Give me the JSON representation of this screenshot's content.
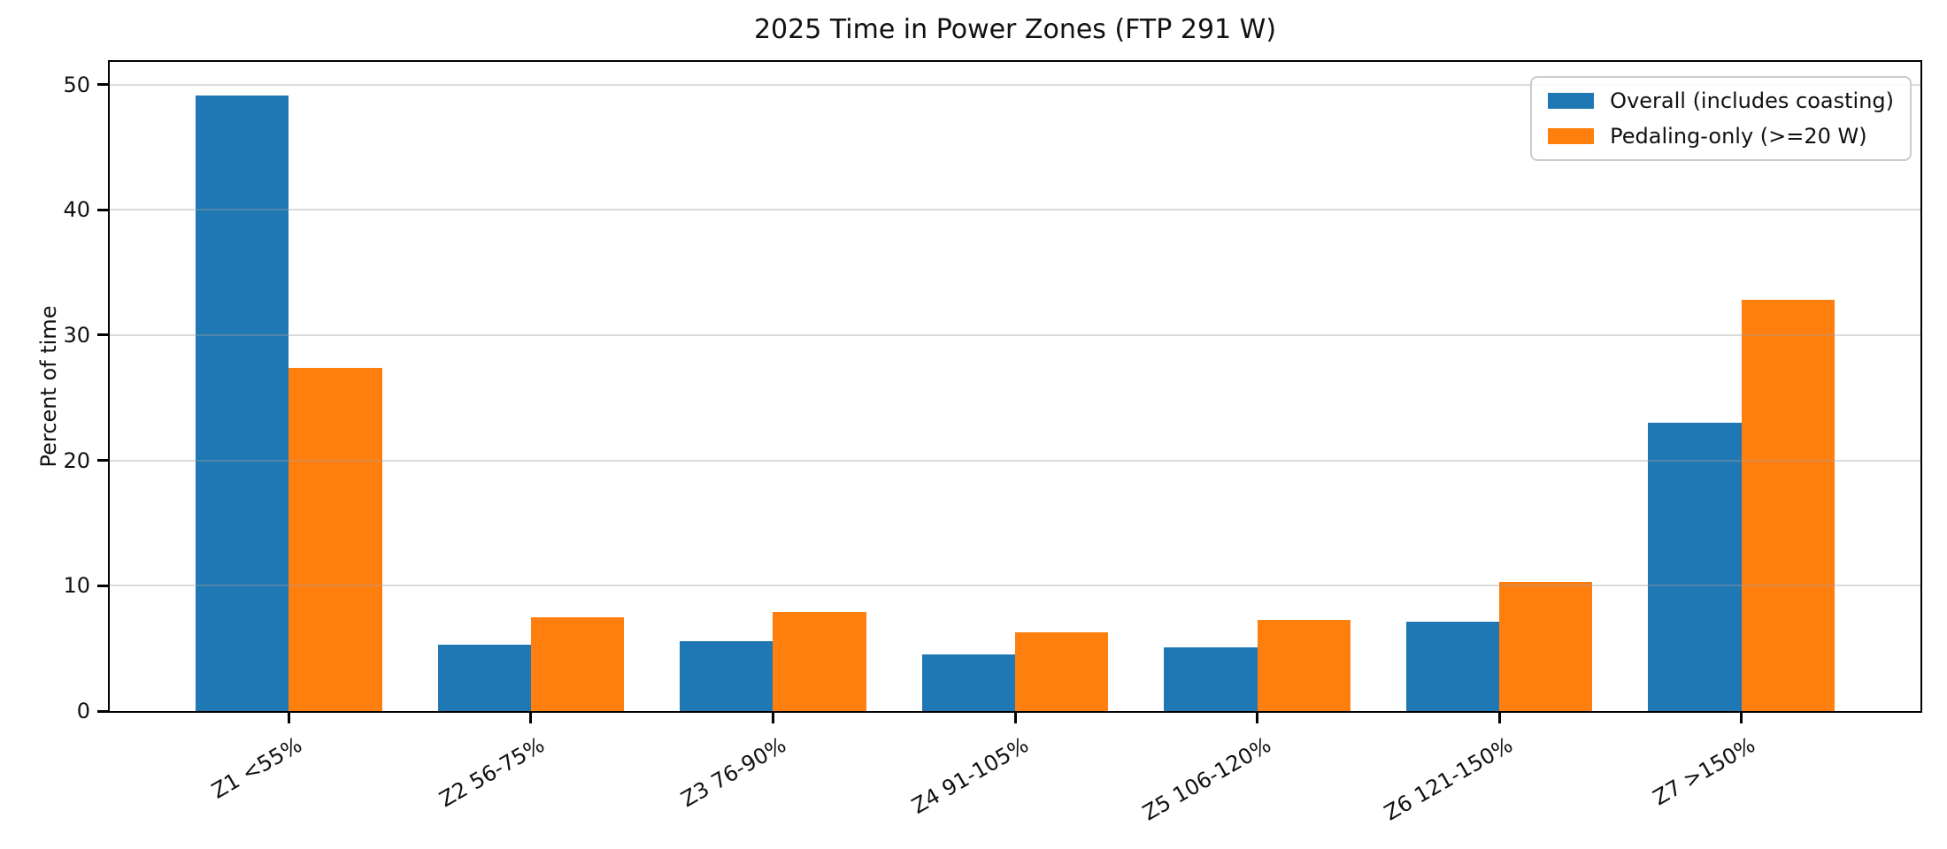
{
  "chart_data": {
    "type": "bar",
    "title": "2025 Time in Power Zones (FTP 291 W)",
    "xlabel": "",
    "ylabel": "Percent of time",
    "categories": [
      "Z1 <55%",
      "Z2 56-75%",
      "Z3 76-90%",
      "Z4 91-105%",
      "Z5 106-120%",
      "Z6 121-150%",
      "Z7 >150%"
    ],
    "series": [
      {
        "name": "Overall (includes coasting)",
        "color": "#1f77b4",
        "values": [
          49.1,
          5.3,
          5.6,
          4.5,
          5.1,
          7.1,
          23.0
        ]
      },
      {
        "name": "Pedaling-only (>=20 W)",
        "color": "#ff7f0e",
        "values": [
          27.4,
          7.5,
          7.9,
          6.3,
          7.3,
          10.3,
          32.8
        ]
      }
    ],
    "yticks": [
      0,
      10,
      20,
      30,
      40,
      50
    ],
    "ylim": [
      0,
      51.8
    ],
    "grid": "horizontal, drawn over bars",
    "legend_position": "upper right",
    "xtick_rotation_deg": 30
  }
}
